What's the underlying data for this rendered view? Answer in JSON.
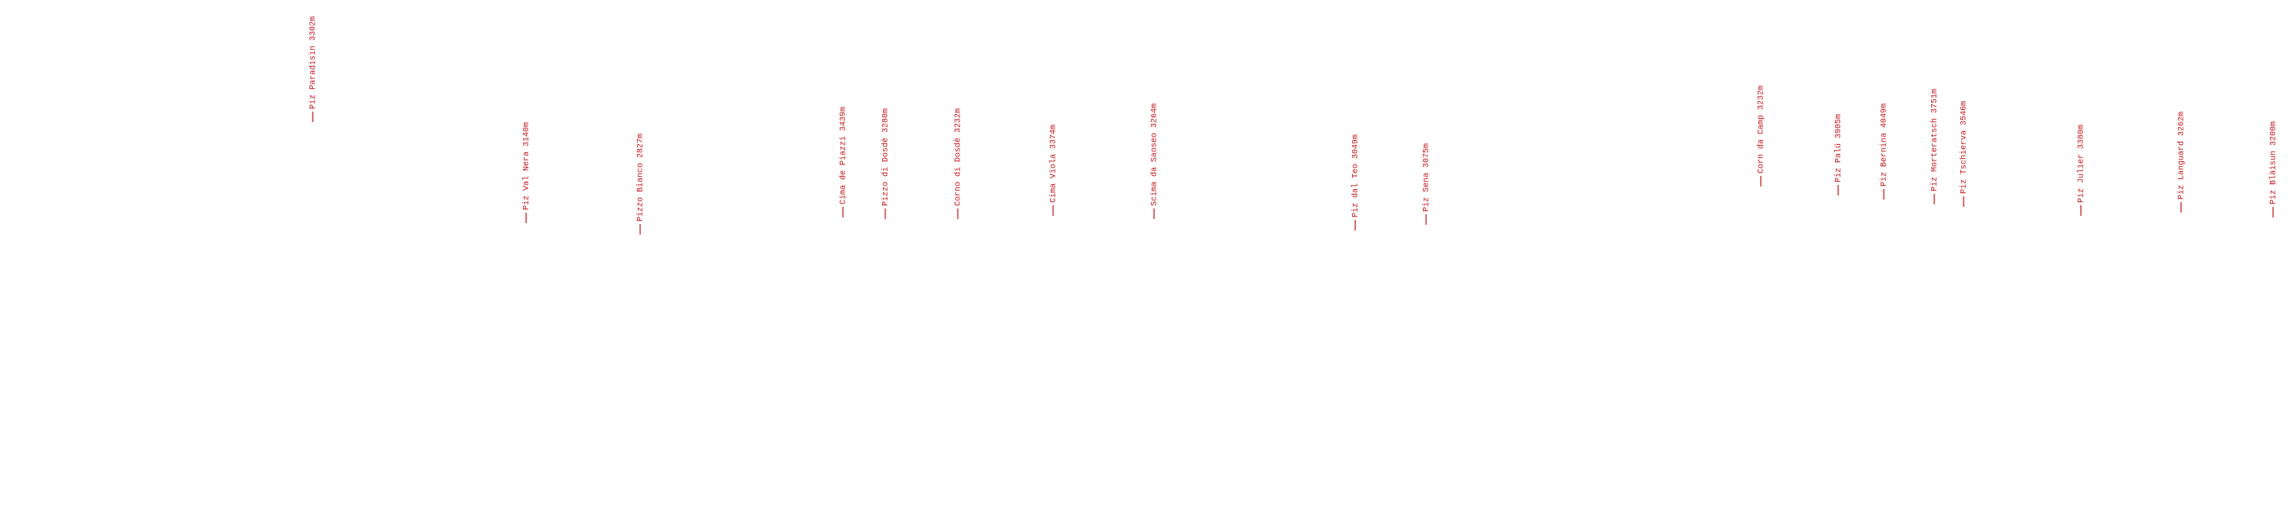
{
  "peaks": [
    "Piz Paradisin 3302m",
    "Piz Val Nera 3140m",
    "Pizzo Bianco 2827m",
    "Cima de Piazzi 3439m",
    "Pizzo di Dosdè 3280m",
    "Corno di Dosdè 3232m",
    "Cima Viola 3374m",
    "Scima da Saoseo 3264m",
    "Piz dal Teo 3049m",
    "Piz Sena 3075m",
    "Corn da Camp 3232m",
    "Piz Palü 3905m",
    "Piz Bernina 4049m",
    "Piz Morteratsch 3751m",
    "Piz Tschierva 3546m",
    "Piz Julier 3380m",
    "Piz Languard 3262m",
    "Piz Bläisun 3200m"
  ]
}
